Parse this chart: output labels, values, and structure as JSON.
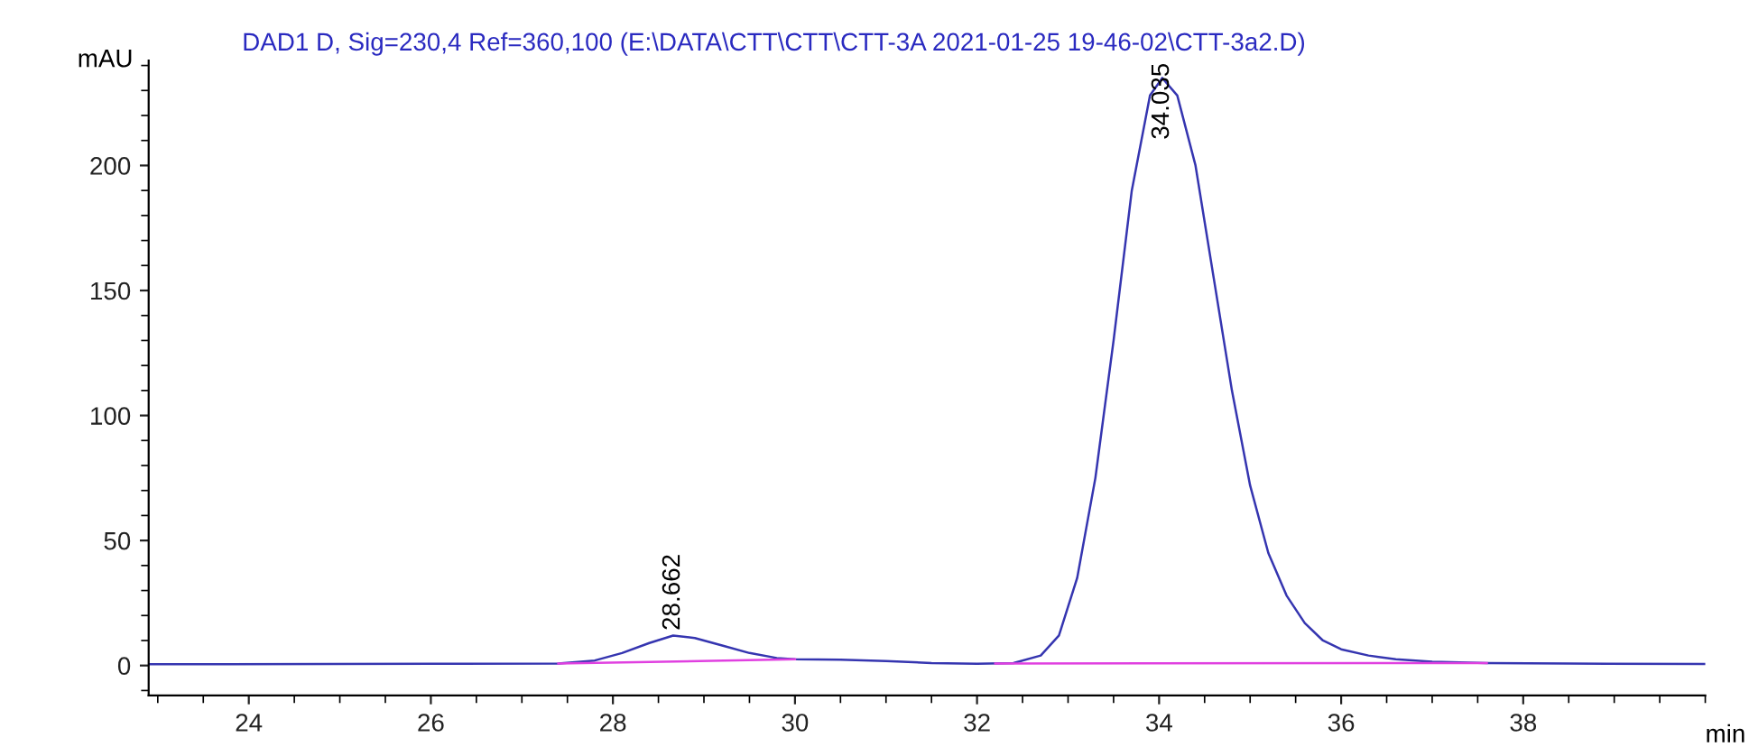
{
  "chart_data": {
    "type": "line",
    "title": "DAD1 D, Sig=230,4 Ref=360,100 (E:\\DATA\\CTT\\CTT\\CTT-3A 2021-01-25 19-46-02\\CTT-3a2.D)",
    "xlabel": "min",
    "ylabel": "mAU",
    "xlim": [
      22.9,
      40
    ],
    "ylim": [
      -12,
      242
    ],
    "xticks": [
      24,
      26,
      28,
      30,
      32,
      34,
      36,
      38
    ],
    "yticks": [
      0,
      50,
      100,
      150,
      200
    ],
    "grid": false,
    "legend": false,
    "marker": "none",
    "line_style": "solid",
    "series": [
      {
        "color": "#3535b0",
        "x": [
          22.9,
          26,
          27.4,
          27.8,
          28.1,
          28.4,
          28.662,
          28.9,
          29.2,
          29.5,
          29.8,
          30.0,
          30.5,
          31.0,
          31.5,
          32.0,
          32.4,
          32.7,
          32.9,
          33.1,
          33.3,
          33.5,
          33.7,
          33.9,
          34.035,
          34.2,
          34.4,
          34.6,
          34.8,
          35.0,
          35.2,
          35.4,
          35.6,
          35.8,
          36.0,
          36.3,
          36.6,
          37.0,
          37.6,
          38.5,
          40
        ],
        "values": [
          0.5,
          0.7,
          0.8,
          2,
          5,
          9,
          12,
          11,
          8,
          5,
          3,
          2.5,
          2.3,
          1.8,
          1.0,
          0.7,
          1,
          4,
          12,
          35,
          75,
          130,
          190,
          228,
          235,
          228,
          200,
          155,
          110,
          72,
          45,
          28,
          17,
          10,
          6.5,
          4,
          2.5,
          1.5,
          1.0,
          0.8,
          0.6
        ]
      },
      {
        "color": "#e040e0",
        "x": [
          27.4,
          30.0
        ],
        "values": [
          0.8,
          2.5
        ]
      },
      {
        "color": "#e040e0",
        "x": [
          32.2,
          37.6
        ],
        "values": [
          0.8,
          1.0
        ]
      }
    ],
    "annotations": [
      {
        "text": "28.662",
        "x": 28.662,
        "y": 12
      },
      {
        "text": "34.035",
        "x": 34.035,
        "y": 235
      }
    ]
  }
}
